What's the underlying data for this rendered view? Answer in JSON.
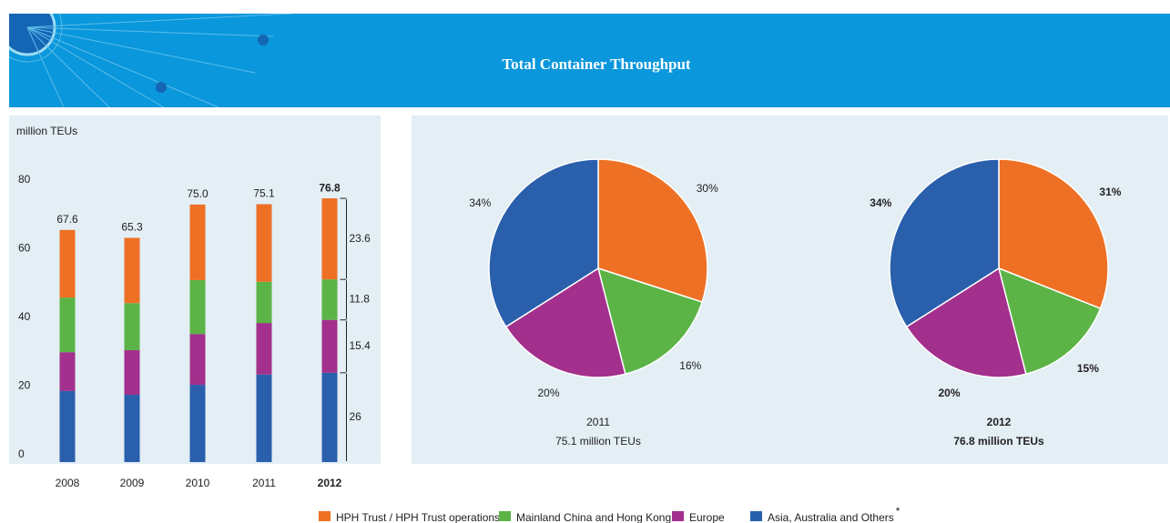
{
  "chart_data": [
    {
      "type": "bar",
      "title": "Total Container Throughput",
      "y_label": "million TEUs",
      "categories": [
        "2008",
        "2009",
        "2010",
        "2011",
        "2012"
      ],
      "totals": [
        67.6,
        65.3,
        75.0,
        75.1,
        76.8
      ],
      "total_labels": [
        "67.6",
        "65.3",
        "75.0",
        "75.1",
        "76.8"
      ],
      "series": [
        {
          "name": "Asia, Australia and Others",
          "color": "#2a5fac",
          "values": [
            20.7,
            19.6,
            22.5,
            25.5,
            26.0
          ]
        },
        {
          "name": "Europe",
          "color": "#a2308c",
          "values": [
            11.3,
            13.0,
            14.8,
            15.0,
            15.4
          ]
        },
        {
          "name": "Mainland China and Hong Kong",
          "color": "#5bb445",
          "values": [
            15.9,
            13.7,
            15.7,
            12.0,
            11.8
          ]
        },
        {
          "name": "HPH Trust / HPH Trust operations",
          "color": "#ee7024",
          "values": [
            19.7,
            19.0,
            22.0,
            22.6,
            23.6
          ]
        }
      ],
      "footnote_marker": "*",
      "ylim": [
        0,
        80
      ],
      "yticks": [
        0,
        20,
        40,
        60,
        80
      ],
      "grid": false
    },
    {
      "type": "pie",
      "title": "2011",
      "subtitle": "75.1 million TEUs",
      "categories": [
        "HPH Trust / HPH Trust operations",
        "Mainland China and Hong Kong",
        "Europe",
        "Asia, Australia and Others"
      ],
      "colors": [
        "#ee7024",
        "#5bb445",
        "#a2308c",
        "#2a5fac"
      ],
      "values": [
        30,
        16,
        20,
        34
      ],
      "value_labels": [
        "30%",
        "16%",
        "20%",
        "34%"
      ]
    },
    {
      "type": "pie",
      "title": "2012",
      "subtitle": "76.8 million TEUs",
      "categories": [
        "HPH Trust / HPH Trust operations",
        "Mainland China and Hong Kong",
        "Europe",
        "Asia, Australia and Others"
      ],
      "colors": [
        "#ee7024",
        "#5bb445",
        "#a2308c",
        "#2a5fac"
      ],
      "values": [
        31,
        15,
        20,
        34
      ],
      "value_labels": [
        "31%",
        "15%",
        "20%",
        "34%"
      ]
    }
  ]
}
